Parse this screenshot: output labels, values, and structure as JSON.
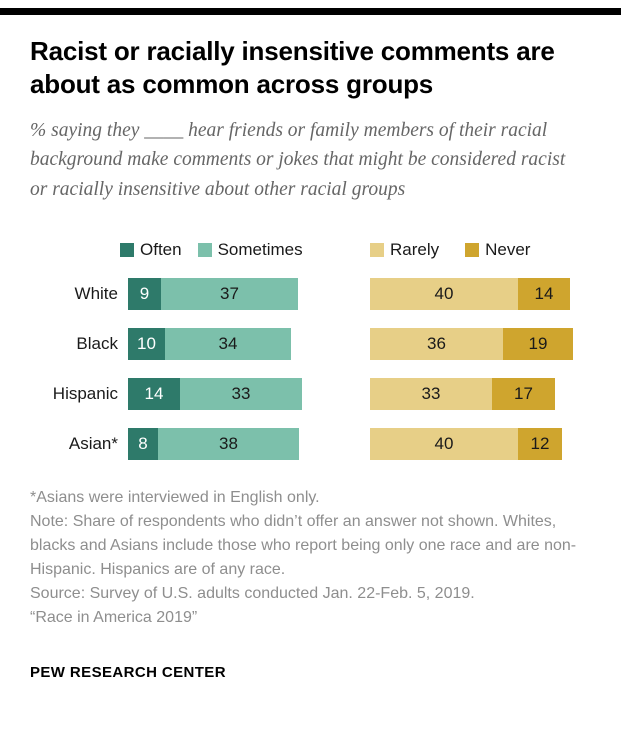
{
  "header": {
    "title": "Racist or racially insensitive comments are about as common across groups",
    "subtitle": "% saying they ____ hear friends or family members of their racial background make comments or jokes that might be considered racist or racially insensitive about other racial groups"
  },
  "chart_data": {
    "type": "bar",
    "variant": "horizontal-stacked-two-groups",
    "unit": "%",
    "legend_position": "top",
    "axis": "none",
    "categories": [
      "White",
      "Black",
      "Hispanic",
      "Asian*"
    ],
    "series": [
      {
        "name": "Often",
        "group": "left",
        "values": [
          9,
          10,
          14,
          8
        ],
        "color": "#2e7a6a",
        "text_color": "#ffffff"
      },
      {
        "name": "Sometimes",
        "group": "left",
        "values": [
          37,
          34,
          33,
          38
        ],
        "color": "#7cc0ab",
        "text_color": "#1a1a1a"
      },
      {
        "name": "Rarely",
        "group": "right",
        "values": [
          40,
          36,
          33,
          40
        ],
        "color": "#e7cf87",
        "text_color": "#1a1a1a"
      },
      {
        "name": "Never",
        "group": "right",
        "values": [
          14,
          19,
          17,
          12
        ],
        "color": "#cfa52e",
        "text_color": "#1a1a1a"
      }
    ]
  },
  "notes": {
    "asterisk": "*Asians were interviewed in English only.",
    "note": "Note: Share of respondents who didn’t offer an answer not shown. Whites, blacks and Asians include those who report being only one race and are non-Hispanic. Hispanics are of any race.",
    "source": "Source: Survey of U.S. adults conducted Jan. 22-Feb. 5, 2019.",
    "report": "“Race in America 2019”"
  },
  "footer": {
    "brand": "PEW RESEARCH CENTER"
  }
}
